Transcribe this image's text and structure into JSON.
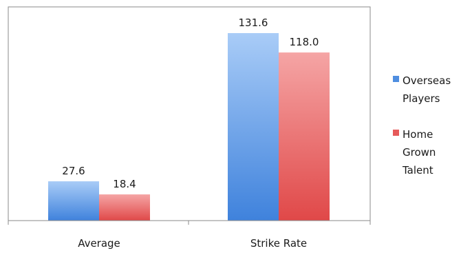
{
  "chart_data": {
    "type": "bar",
    "categories": [
      "Average",
      "Strike Rate"
    ],
    "series": [
      {
        "name": "Overseas Players",
        "legend_lines": [
          "Overseas",
          "Players"
        ],
        "values": [
          27.6,
          131.6
        ],
        "labels": [
          "27.6",
          "131.6"
        ],
        "color": "#4f8ee0"
      },
      {
        "name": "Home Grown Talent",
        "legend_lines": [
          "Home",
          "Grown",
          "Talent"
        ],
        "values": [
          18.4,
          118.0
        ],
        "labels": [
          "18.4",
          "118.0"
        ],
        "color": "#e65a5a"
      }
    ],
    "ylim": [
      0,
      150
    ],
    "grid": false,
    "legend": "right",
    "title": "",
    "xlabel": "",
    "ylabel": ""
  }
}
